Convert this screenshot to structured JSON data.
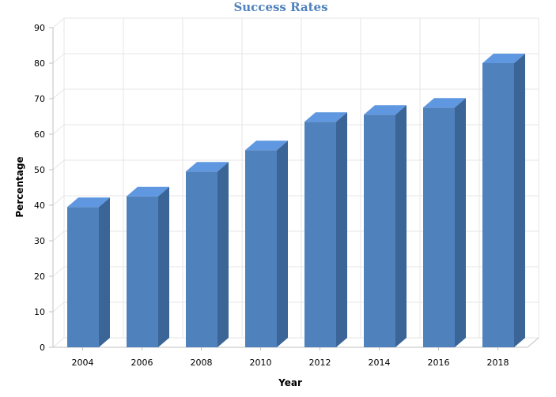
{
  "chart_data": {
    "type": "bar",
    "title": "Success Rates",
    "xlabel": "Year",
    "ylabel": "Percentage",
    "categories": [
      "2004",
      "2006",
      "2008",
      "2010",
      "2012",
      "2014",
      "2016",
      "2018"
    ],
    "values": [
      39.5,
      42.5,
      49.5,
      55.5,
      63.5,
      65.5,
      67.5,
      80
    ],
    "ylim": [
      0,
      90
    ],
    "yticks": [
      0,
      10,
      20,
      30,
      40,
      50,
      60,
      70,
      80,
      90
    ],
    "grid": true,
    "style": "3d-column",
    "colors": {
      "front": "#4f81bd",
      "top": "#5f97e0",
      "side": "#3a6596",
      "title": "#4f81bd"
    }
  }
}
